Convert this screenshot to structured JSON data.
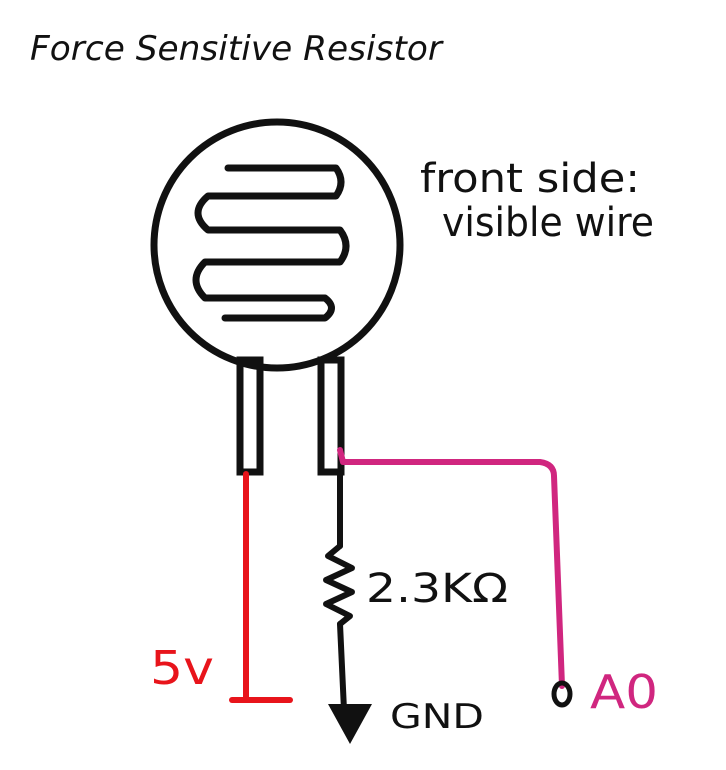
{
  "diagram": {
    "title": "Force Sensitive Resistor",
    "note_line1": "front side:",
    "note_line2": "visible wire",
    "resistor_value": "2.3KΩ",
    "supply_label": "5v",
    "ground_label": "GND",
    "analog_pin_label": "A0",
    "colors": {
      "ink": "#111111",
      "supply_wire": "#e8141b",
      "signal_wire": "#d0267f"
    }
  }
}
